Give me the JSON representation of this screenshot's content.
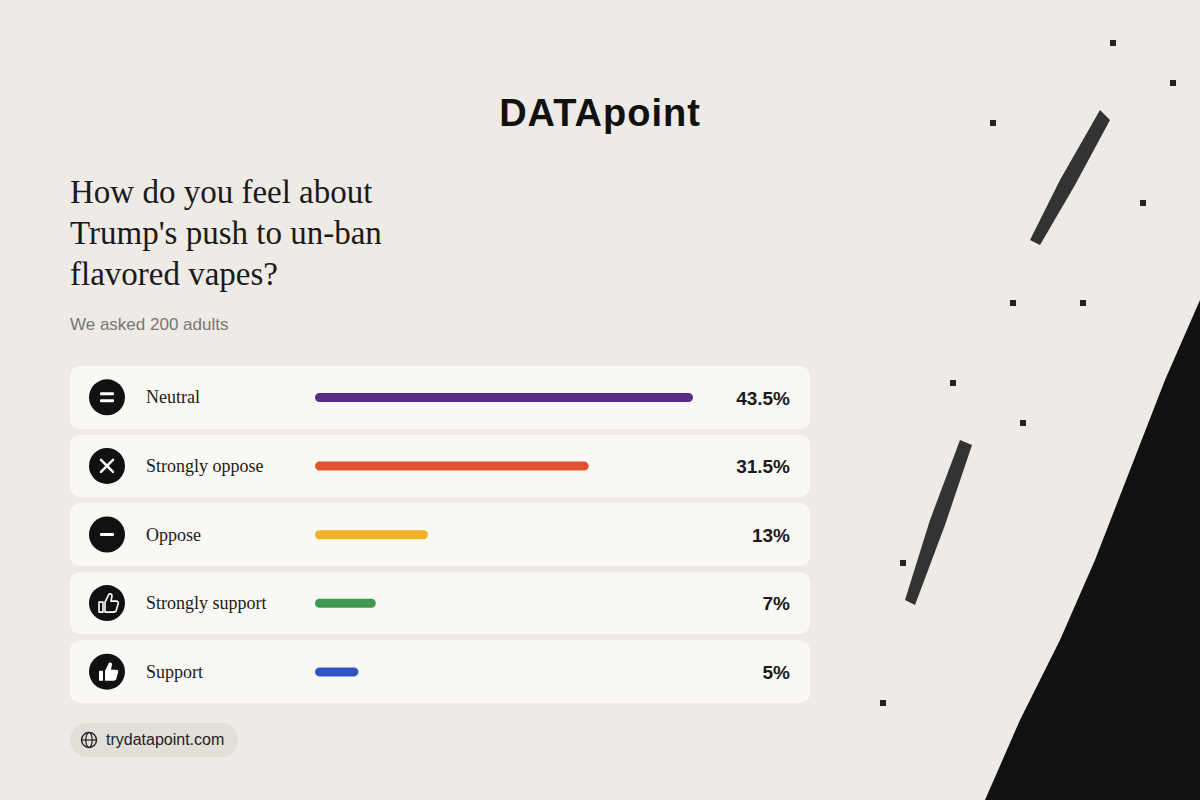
{
  "chart_data": {
    "type": "bar",
    "orientation": "horizontal",
    "title": "How do you feel about Trump's push to un-ban flavored vapes?",
    "subtitle": "We asked 200 adults",
    "logo": "DATApoint",
    "source": "trydatapoint.com",
    "categories": [
      "Neutral",
      "Strongly oppose",
      "Oppose",
      "Strongly support",
      "Support"
    ],
    "values": [
      43.5,
      31.5,
      13,
      7,
      5
    ],
    "value_labels": [
      "43.5%",
      "31.5%",
      "13%",
      "7%",
      "5%"
    ],
    "colors": [
      "#5b2a86",
      "#e0512d",
      "#f0b323",
      "#3e9a4f",
      "#2f55c4"
    ],
    "xlim": [
      0,
      43.5
    ],
    "data_labels": true,
    "tick_labels": false,
    "grid": false
  }
}
